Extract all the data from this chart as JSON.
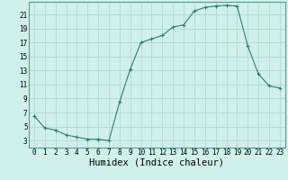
{
  "x": [
    0,
    1,
    2,
    3,
    4,
    5,
    6,
    7,
    8,
    9,
    10,
    11,
    12,
    13,
    14,
    15,
    16,
    17,
    18,
    19,
    20,
    21,
    22,
    23
  ],
  "y": [
    6.5,
    4.8,
    4.5,
    3.8,
    3.5,
    3.2,
    3.2,
    3.0,
    8.5,
    13.2,
    17.0,
    17.5,
    18.0,
    19.2,
    19.5,
    21.5,
    22.0,
    22.2,
    22.3,
    22.2,
    16.5,
    12.5,
    10.8,
    10.5
  ],
  "line_color": "#2e7d6e",
  "marker": "+",
  "bg_color": "#cff0ec",
  "grid_color": "#b0d8d2",
  "xlabel": "Humidex (Indice chaleur)",
  "xticks": [
    0,
    1,
    2,
    3,
    4,
    5,
    6,
    7,
    8,
    9,
    10,
    11,
    12,
    13,
    14,
    15,
    16,
    17,
    18,
    19,
    20,
    21,
    22,
    23
  ],
  "yticks": [
    3,
    5,
    7,
    9,
    11,
    13,
    15,
    17,
    19,
    21
  ],
  "xlim": [
    -0.5,
    23.5
  ],
  "ylim": [
    2.0,
    22.8
  ],
  "tick_fontsize": 5.5,
  "xlabel_fontsize": 7.5
}
